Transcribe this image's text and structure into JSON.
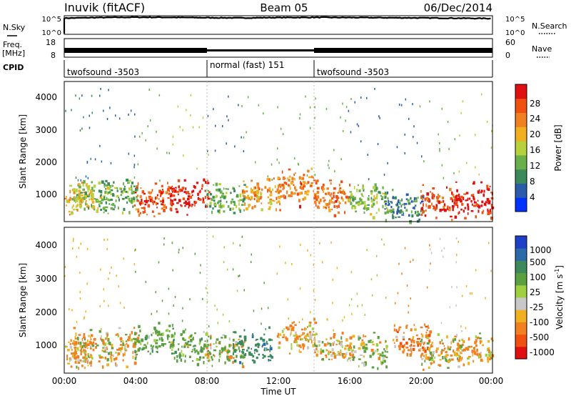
{
  "header": {
    "station": "Inuvik (fitACF)",
    "beam": "Beam 05",
    "date": "06/Dec/2014"
  },
  "top_panels": {
    "nsky_label": "N.Sky",
    "nsearch_label": "N.Search",
    "log_ticks": [
      "10^5",
      "10^0"
    ],
    "freq_label": "Freq.",
    "freq_unit": "[MHz]",
    "freq_ticks": [
      "18",
      "8"
    ],
    "nave_label": "Nave",
    "nave_ticks": [
      "60",
      "0"
    ],
    "cpid_label": "CPID",
    "cpid_segments": [
      {
        "name": "twofsound -3503",
        "start_hour": 0,
        "end_hour": 8
      },
      {
        "name": "normal (fast) 151",
        "start_hour": 8,
        "end_hour": 14
      },
      {
        "name": "twofsound -3503",
        "start_hour": 14,
        "end_hour": 24
      }
    ]
  },
  "power_panel": {
    "ylabel": "Slant Range [km]",
    "yticks": [
      "4000",
      "3000",
      "2000",
      "1000"
    ],
    "colorbar_label": "Power [dB]",
    "colorbar_ticks": [
      "28",
      "24",
      "20",
      "16",
      "12",
      "8",
      "4"
    ],
    "colors": [
      "#0033ff",
      "#2a5caa",
      "#3c8a5a",
      "#6ab04a",
      "#b8d03c",
      "#f0b020",
      "#f08020",
      "#f05010",
      "#e01010"
    ]
  },
  "velocity_panel": {
    "ylabel": "Slant Range [km]",
    "yticks": [
      "4000",
      "3000",
      "2000",
      "1000"
    ],
    "colorbar_label": "Velocity [m s",
    "colorbar_unit_sup": "-1",
    "colorbar_unit_close": "]",
    "colorbar_ticks": [
      "1000",
      "500",
      "100",
      "25",
      "-25",
      "-100",
      "-500",
      "-1000"
    ],
    "colors": [
      "#1e40c8",
      "#2a6aa8",
      "#3c8a5a",
      "#5aa040",
      "#9ed040",
      "#c8c8c8",
      "#f0b020",
      "#f08020",
      "#f05010",
      "#e01010"
    ]
  },
  "xaxis": {
    "label": "Time UT",
    "ticks": [
      "00:00",
      "04:00",
      "08:00",
      "12:00",
      "16:00",
      "20:00",
      "00:00"
    ]
  },
  "chart_data": [
    {
      "type": "heatmap",
      "title": "Inuvik (fitACF) Beam 05 06/Dec/2014",
      "xlabel": "Time UT",
      "ylabel": "Slant Range [km]",
      "xlim": [
        0,
        24
      ],
      "ylim": [
        180,
        4600
      ],
      "zlabel": "Power [dB]",
      "zlim": [
        0,
        32
      ],
      "series": [
        {
          "name": "Power",
          "x": [
            0.5,
            1.5,
            3,
            5,
            7,
            9,
            11,
            13,
            15,
            17,
            19,
            21,
            23
          ],
          "y": [
            900,
            1000,
            1000,
            900,
            1000,
            900,
            1100,
            1300,
            1000,
            900,
            700,
            800,
            900
          ],
          "values": [
            20,
            14,
            12,
            26,
            30,
            12,
            22,
            24,
            24,
            14,
            8,
            28,
            30
          ]
        }
      ]
    },
    {
      "type": "heatmap",
      "title": "",
      "xlabel": "Time UT",
      "ylabel": "Slant Range [km]",
      "xlim": [
        0,
        24
      ],
      "ylim": [
        180,
        4600
      ],
      "zlabel": "Velocity [m s-1]",
      "zlim": [
        -1000,
        1000
      ],
      "series": [
        {
          "name": "Velocity",
          "x": [
            0.5,
            1.5,
            3,
            5,
            7,
            9,
            10.5,
            13,
            15,
            17,
            19.5,
            21,
            23
          ],
          "y": [
            900,
            1000,
            1000,
            1200,
            1000,
            900,
            1100,
            1300,
            1000,
            900,
            1200,
            800,
            900
          ],
          "values": [
            -200,
            -100,
            -100,
            300,
            250,
            100,
            800,
            -200,
            -100,
            50,
            -300,
            -25,
            -150
          ]
        }
      ]
    },
    {
      "type": "line",
      "title": "",
      "ylabel": "N.Sky",
      "xlim": [
        0,
        24
      ],
      "yscale": "log",
      "series": [
        {
          "name": "N.Sky",
          "x": [
            0,
            2,
            4,
            6,
            8,
            10,
            12,
            14,
            16,
            18,
            20,
            22,
            24
          ],
          "values": [
            50000,
            80000,
            100000,
            90000,
            70000,
            60000,
            80000,
            90000,
            80000,
            70000,
            60000,
            50000,
            40000
          ]
        }
      ]
    }
  ]
}
